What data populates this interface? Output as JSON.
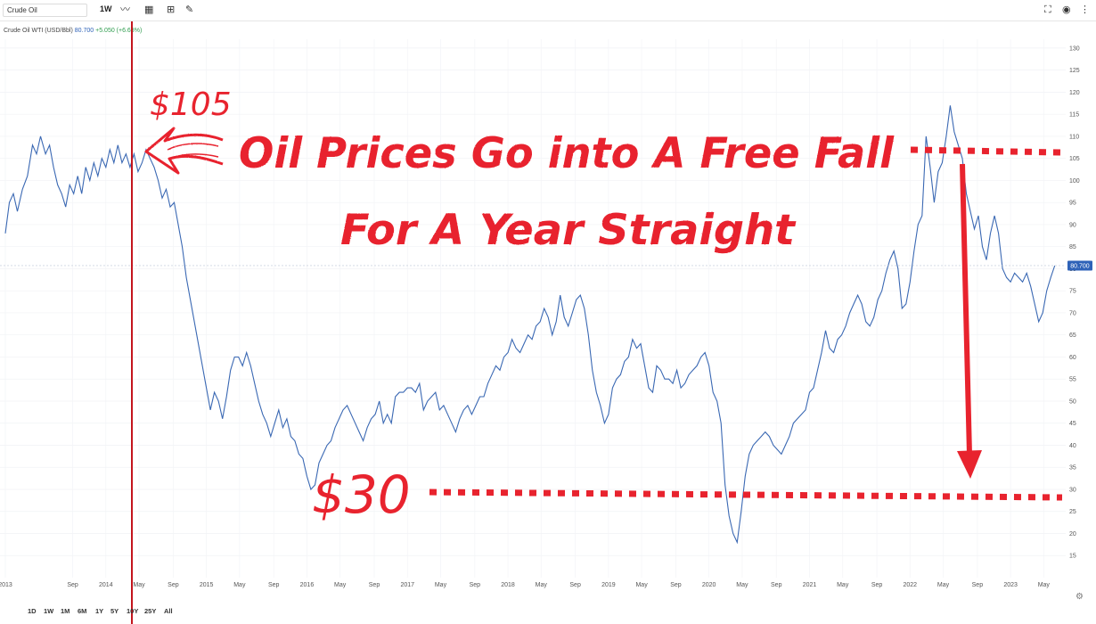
{
  "toolbar": {
    "search_value": "Crude Oil",
    "interval": "1W",
    "icons": [
      "line-chart-icon",
      "calendar-icon",
      "add-indicator-icon",
      "pencil-icon",
      "fullscreen-icon",
      "eye-icon",
      "more-icon"
    ]
  },
  "legend": {
    "name": "Crude Oil WTI (USD/Bbl)",
    "value": "80.700",
    "change": "+5.050 (+6.68%)"
  },
  "range_buttons": [
    "1D",
    "1W",
    "1M",
    "6M",
    "1Y",
    "5Y",
    "10Y",
    "25Y",
    "All"
  ],
  "annotations": {
    "headline_1": "Oil Prices Go into A Free Fall",
    "headline_2": "For A Year Straight",
    "high_label": "$105",
    "low_label": "$30"
  },
  "colors": {
    "line": "#3a68b3",
    "annotation": "#e8232e",
    "price_tag": "#2e62b8",
    "marker": "#c3141d"
  },
  "chart_data": {
    "type": "line",
    "title": "Crude Oil WTI (USD/Bbl)",
    "xlabel": "",
    "ylabel": "",
    "ylim": [
      10,
      132
    ],
    "xlim": [
      2013.0,
      2023.46
    ],
    "yticks": [
      15,
      20,
      25,
      30,
      35,
      40,
      45,
      50,
      55,
      60,
      65,
      70,
      75,
      80,
      85,
      90,
      95,
      100,
      105,
      110,
      115,
      120,
      125,
      130
    ],
    "xticks": [
      {
        "x": 2013.0,
        "label": "2013"
      },
      {
        "x": 2013.67,
        "label": "Sep"
      },
      {
        "x": 2014.0,
        "label": "2014"
      },
      {
        "x": 2014.33,
        "label": "May"
      },
      {
        "x": 2014.67,
        "label": "Sep"
      },
      {
        "x": 2015.0,
        "label": "2015"
      },
      {
        "x": 2015.33,
        "label": "May"
      },
      {
        "x": 2015.67,
        "label": "Sep"
      },
      {
        "x": 2016.0,
        "label": "2016"
      },
      {
        "x": 2016.33,
        "label": "May"
      },
      {
        "x": 2016.67,
        "label": "Sep"
      },
      {
        "x": 2017.0,
        "label": "2017"
      },
      {
        "x": 2017.33,
        "label": "May"
      },
      {
        "x": 2017.67,
        "label": "Sep"
      },
      {
        "x": 2018.0,
        "label": "2018"
      },
      {
        "x": 2018.33,
        "label": "May"
      },
      {
        "x": 2018.67,
        "label": "Sep"
      },
      {
        "x": 2019.0,
        "label": "2019"
      },
      {
        "x": 2019.33,
        "label": "May"
      },
      {
        "x": 2019.67,
        "label": "Sep"
      },
      {
        "x": 2020.0,
        "label": "2020"
      },
      {
        "x": 2020.33,
        "label": "May"
      },
      {
        "x": 2020.67,
        "label": "Sep"
      },
      {
        "x": 2021.0,
        "label": "2021"
      },
      {
        "x": 2021.33,
        "label": "May"
      },
      {
        "x": 2021.67,
        "label": "Sep"
      },
      {
        "x": 2022.0,
        "label": "2022"
      },
      {
        "x": 2022.33,
        "label": "May"
      },
      {
        "x": 2022.67,
        "label": "Sep"
      },
      {
        "x": 2023.0,
        "label": "2023"
      },
      {
        "x": 2023.33,
        "label": "May"
      }
    ],
    "last_value": 80.7,
    "series": [
      {
        "name": "Crude Oil WTI",
        "points": [
          [
            2013.0,
            88
          ],
          [
            2013.04,
            95
          ],
          [
            2013.08,
            97
          ],
          [
            2013.12,
            93
          ],
          [
            2013.17,
            98
          ],
          [
            2013.22,
            101
          ],
          [
            2013.27,
            108
          ],
          [
            2013.31,
            106
          ],
          [
            2013.35,
            110
          ],
          [
            2013.4,
            106
          ],
          [
            2013.44,
            108
          ],
          [
            2013.48,
            103
          ],
          [
            2013.52,
            99
          ],
          [
            2013.56,
            97
          ],
          [
            2013.6,
            94
          ],
          [
            2013.64,
            99
          ],
          [
            2013.68,
            97
          ],
          [
            2013.72,
            101
          ],
          [
            2013.76,
            97
          ],
          [
            2013.8,
            103
          ],
          [
            2013.84,
            100
          ],
          [
            2013.88,
            104
          ],
          [
            2013.92,
            101
          ],
          [
            2013.96,
            105
          ],
          [
            2014.0,
            103
          ],
          [
            2014.04,
            107
          ],
          [
            2014.08,
            104
          ],
          [
            2014.12,
            108
          ],
          [
            2014.16,
            104
          ],
          [
            2014.2,
            106
          ],
          [
            2014.24,
            103
          ],
          [
            2014.28,
            106
          ],
          [
            2014.32,
            102
          ],
          [
            2014.36,
            104
          ],
          [
            2014.4,
            107
          ],
          [
            2014.44,
            105
          ],
          [
            2014.48,
            103
          ],
          [
            2014.52,
            100
          ],
          [
            2014.56,
            96
          ],
          [
            2014.6,
            98
          ],
          [
            2014.64,
            94
          ],
          [
            2014.68,
            95
          ],
          [
            2014.72,
            90
          ],
          [
            2014.76,
            85
          ],
          [
            2014.8,
            78
          ],
          [
            2014.84,
            73
          ],
          [
            2014.88,
            68
          ],
          [
            2014.92,
            63
          ],
          [
            2014.96,
            58
          ],
          [
            2015.0,
            53
          ],
          [
            2015.04,
            48
          ],
          [
            2015.08,
            52
          ],
          [
            2015.12,
            50
          ],
          [
            2015.16,
            46
          ],
          [
            2015.2,
            51
          ],
          [
            2015.24,
            57
          ],
          [
            2015.28,
            60
          ],
          [
            2015.32,
            60
          ],
          [
            2015.36,
            58
          ],
          [
            2015.4,
            61
          ],
          [
            2015.44,
            58
          ],
          [
            2015.48,
            54
          ],
          [
            2015.52,
            50
          ],
          [
            2015.56,
            47
          ],
          [
            2015.6,
            45
          ],
          [
            2015.64,
            42
          ],
          [
            2015.68,
            45
          ],
          [
            2015.72,
            48
          ],
          [
            2015.76,
            44
          ],
          [
            2015.8,
            46
          ],
          [
            2015.84,
            42
          ],
          [
            2015.88,
            41
          ],
          [
            2015.92,
            38
          ],
          [
            2015.96,
            37
          ],
          [
            2016.0,
            33
          ],
          [
            2016.04,
            30
          ],
          [
            2016.08,
            31
          ],
          [
            2016.12,
            36
          ],
          [
            2016.16,
            38
          ],
          [
            2016.2,
            40
          ],
          [
            2016.24,
            41
          ],
          [
            2016.28,
            44
          ],
          [
            2016.32,
            46
          ],
          [
            2016.36,
            48
          ],
          [
            2016.4,
            49
          ],
          [
            2016.44,
            47
          ],
          [
            2016.48,
            45
          ],
          [
            2016.52,
            43
          ],
          [
            2016.56,
            41
          ],
          [
            2016.6,
            44
          ],
          [
            2016.64,
            46
          ],
          [
            2016.68,
            47
          ],
          [
            2016.72,
            50
          ],
          [
            2016.76,
            45
          ],
          [
            2016.8,
            47
          ],
          [
            2016.84,
            45
          ],
          [
            2016.88,
            51
          ],
          [
            2016.92,
            52
          ],
          [
            2016.96,
            52
          ],
          [
            2017.0,
            53
          ],
          [
            2017.04,
            53
          ],
          [
            2017.08,
            52
          ],
          [
            2017.12,
            54
          ],
          [
            2017.16,
            48
          ],
          [
            2017.2,
            50
          ],
          [
            2017.24,
            51
          ],
          [
            2017.28,
            52
          ],
          [
            2017.32,
            48
          ],
          [
            2017.36,
            49
          ],
          [
            2017.4,
            47
          ],
          [
            2017.44,
            45
          ],
          [
            2017.48,
            43
          ],
          [
            2017.52,
            46
          ],
          [
            2017.56,
            48
          ],
          [
            2017.6,
            49
          ],
          [
            2017.64,
            47
          ],
          [
            2017.68,
            49
          ],
          [
            2017.72,
            51
          ],
          [
            2017.76,
            51
          ],
          [
            2017.8,
            54
          ],
          [
            2017.84,
            56
          ],
          [
            2017.88,
            58
          ],
          [
            2017.92,
            57
          ],
          [
            2017.96,
            60
          ],
          [
            2018.0,
            61
          ],
          [
            2018.04,
            64
          ],
          [
            2018.08,
            62
          ],
          [
            2018.12,
            61
          ],
          [
            2018.16,
            63
          ],
          [
            2018.2,
            65
          ],
          [
            2018.24,
            64
          ],
          [
            2018.28,
            67
          ],
          [
            2018.32,
            68
          ],
          [
            2018.36,
            71
          ],
          [
            2018.4,
            69
          ],
          [
            2018.44,
            65
          ],
          [
            2018.48,
            68
          ],
          [
            2018.52,
            74
          ],
          [
            2018.56,
            69
          ],
          [
            2018.6,
            67
          ],
          [
            2018.64,
            70
          ],
          [
            2018.68,
            73
          ],
          [
            2018.72,
            74
          ],
          [
            2018.76,
            71
          ],
          [
            2018.8,
            65
          ],
          [
            2018.84,
            57
          ],
          [
            2018.88,
            52
          ],
          [
            2018.92,
            49
          ],
          [
            2018.96,
            45
          ],
          [
            2019.0,
            47
          ],
          [
            2019.04,
            53
          ],
          [
            2019.08,
            55
          ],
          [
            2019.12,
            56
          ],
          [
            2019.16,
            59
          ],
          [
            2019.2,
            60
          ],
          [
            2019.24,
            64
          ],
          [
            2019.28,
            62
          ],
          [
            2019.32,
            63
          ],
          [
            2019.36,
            58
          ],
          [
            2019.4,
            53
          ],
          [
            2019.44,
            52
          ],
          [
            2019.48,
            58
          ],
          [
            2019.52,
            57
          ],
          [
            2019.56,
            55
          ],
          [
            2019.6,
            55
          ],
          [
            2019.64,
            54
          ],
          [
            2019.68,
            57
          ],
          [
            2019.72,
            53
          ],
          [
            2019.76,
            54
          ],
          [
            2019.8,
            56
          ],
          [
            2019.84,
            57
          ],
          [
            2019.88,
            58
          ],
          [
            2019.92,
            60
          ],
          [
            2019.96,
            61
          ],
          [
            2020.0,
            58
          ],
          [
            2020.04,
            52
          ],
          [
            2020.08,
            50
          ],
          [
            2020.12,
            45
          ],
          [
            2020.16,
            31
          ],
          [
            2020.2,
            24
          ],
          [
            2020.24,
            20
          ],
          [
            2020.28,
            18
          ],
          [
            2020.32,
            25
          ],
          [
            2020.36,
            33
          ],
          [
            2020.4,
            38
          ],
          [
            2020.44,
            40
          ],
          [
            2020.48,
            41
          ],
          [
            2020.52,
            42
          ],
          [
            2020.56,
            43
          ],
          [
            2020.6,
            42
          ],
          [
            2020.64,
            40
          ],
          [
            2020.68,
            39
          ],
          [
            2020.72,
            38
          ],
          [
            2020.76,
            40
          ],
          [
            2020.8,
            42
          ],
          [
            2020.84,
            45
          ],
          [
            2020.88,
            46
          ],
          [
            2020.92,
            47
          ],
          [
            2020.96,
            48
          ],
          [
            2021.0,
            52
          ],
          [
            2021.04,
            53
          ],
          [
            2021.08,
            57
          ],
          [
            2021.12,
            61
          ],
          [
            2021.16,
            66
          ],
          [
            2021.2,
            62
          ],
          [
            2021.24,
            61
          ],
          [
            2021.28,
            64
          ],
          [
            2021.32,
            65
          ],
          [
            2021.36,
            67
          ],
          [
            2021.4,
            70
          ],
          [
            2021.44,
            72
          ],
          [
            2021.48,
            74
          ],
          [
            2021.52,
            72
          ],
          [
            2021.56,
            68
          ],
          [
            2021.6,
            67
          ],
          [
            2021.64,
            69
          ],
          [
            2021.68,
            73
          ],
          [
            2021.72,
            75
          ],
          [
            2021.76,
            79
          ],
          [
            2021.8,
            82
          ],
          [
            2021.84,
            84
          ],
          [
            2021.88,
            80
          ],
          [
            2021.92,
            71
          ],
          [
            2021.96,
            72
          ],
          [
            2022.0,
            77
          ],
          [
            2022.04,
            84
          ],
          [
            2022.08,
            90
          ],
          [
            2022.12,
            92
          ],
          [
            2022.16,
            110
          ],
          [
            2022.2,
            103
          ],
          [
            2022.24,
            95
          ],
          [
            2022.28,
            102
          ],
          [
            2022.32,
            104
          ],
          [
            2022.36,
            110
          ],
          [
            2022.4,
            117
          ],
          [
            2022.44,
            111
          ],
          [
            2022.48,
            108
          ],
          [
            2022.52,
            105
          ],
          [
            2022.56,
            97
          ],
          [
            2022.6,
            93
          ],
          [
            2022.64,
            89
          ],
          [
            2022.68,
            92
          ],
          [
            2022.72,
            85
          ],
          [
            2022.76,
            82
          ],
          [
            2022.8,
            88
          ],
          [
            2022.84,
            92
          ],
          [
            2022.88,
            88
          ],
          [
            2022.92,
            80
          ],
          [
            2022.96,
            78
          ],
          [
            2023.0,
            77
          ],
          [
            2023.04,
            79
          ],
          [
            2023.08,
            78
          ],
          [
            2023.12,
            77
          ],
          [
            2023.16,
            79
          ],
          [
            2023.2,
            76
          ],
          [
            2023.24,
            72
          ],
          [
            2023.28,
            68
          ],
          [
            2023.32,
            70
          ],
          [
            2023.36,
            75
          ],
          [
            2023.4,
            78
          ],
          [
            2023.44,
            80.7
          ]
        ]
      }
    ]
  }
}
